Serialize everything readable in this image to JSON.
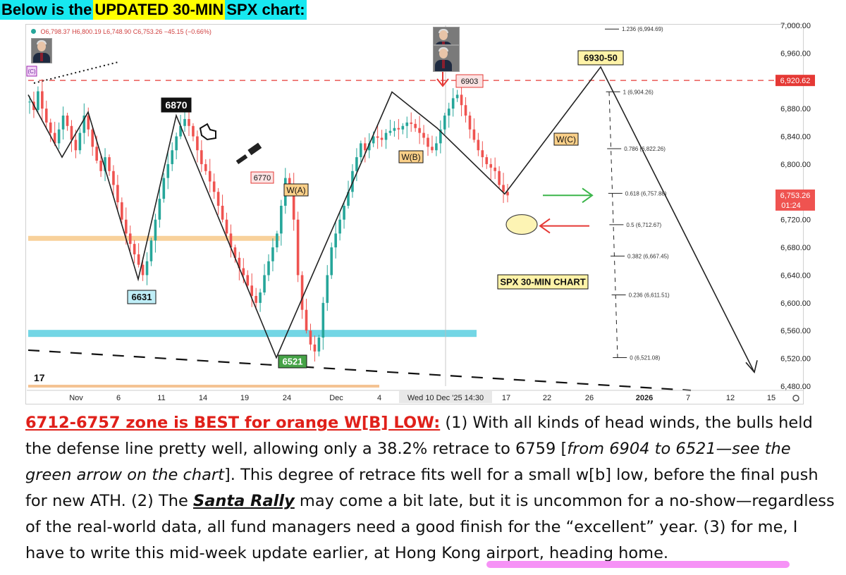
{
  "heading": {
    "part1": "Below is the ",
    "part2": "UPDATED 30-MIN",
    "part3": " SPX chart:",
    "colors": {
      "part1_bg": "#17e8f0",
      "part2_bg": "#ffff00",
      "part3_bg": "#17e8f0"
    }
  },
  "ohlc": {
    "open": "O6,798.37",
    "high": "H6,800.19",
    "low": "L6,748.90",
    "close": "C6,753.26",
    "change": "−45.15 (−0.66%)"
  },
  "chart_data": {
    "type": "candlestick",
    "symbol": "SPX",
    "timeframe": "30-min",
    "ylim": [
      6480,
      7000
    ],
    "y_ticks": [
      "7,000.00",
      "6,960.00",
      "6,920.62",
      "6,880.00",
      "6,840.00",
      "6,800.00",
      "6,760.00",
      "6,720.00",
      "6,680.00",
      "6,640.00",
      "6,600.00",
      "6,560.00",
      "6,520.00",
      "6,480.00"
    ],
    "y_tick_values": [
      7000,
      6960,
      6920.62,
      6880,
      6840,
      6800,
      6760,
      6720,
      6680,
      6640,
      6600,
      6560,
      6520,
      6480
    ],
    "x_ticks": [
      "Nov",
      "6",
      "11",
      "14",
      "19",
      "24",
      "Dec",
      "4",
      "Wed 10 Dec '25   14:30",
      "17",
      "22",
      "26",
      "2026",
      "7",
      "12",
      "15"
    ],
    "current_price": {
      "label": "6,753.26",
      "countdown": "01:24",
      "value": 6753.26
    },
    "resistance_line": {
      "value": 6920.62,
      "label": "6,920.62",
      "style": "dashed",
      "color": "#e53935"
    },
    "fibonacci": [
      {
        "ratio": "1.236",
        "label": "1.236 (6,994.69)",
        "value": 6994.69
      },
      {
        "ratio": "1",
        "label": "1 (6,904.26)",
        "value": 6904.26
      },
      {
        "ratio": "0.786",
        "label": "0.786 (6,822.26)",
        "value": 6822.26
      },
      {
        "ratio": "0.618",
        "label": "0.618 (6,757.88)",
        "value": 6757.88
      },
      {
        "ratio": "0.5",
        "label": "0.5 (6,712.67)",
        "value": 6712.67
      },
      {
        "ratio": "0.382",
        "label": "0.382 (6,667.45)",
        "value": 6667.45
      },
      {
        "ratio": "0.236",
        "label": "0.236 (6,611.51)",
        "value": 6611.51
      },
      {
        "ratio": "0",
        "label": "0 (6,521.08)",
        "value": 6521.08
      }
    ],
    "annotations": [
      {
        "text": "6870",
        "style": "dark"
      },
      {
        "text": "6631",
        "style": "cyan"
      },
      {
        "text": "6770",
        "style": "red-outline"
      },
      {
        "text": "W(A)",
        "style": "orange"
      },
      {
        "text": "6521",
        "style": "green"
      },
      {
        "text": "W(B)",
        "style": "orange"
      },
      {
        "text": "6903",
        "style": "red-outline"
      },
      {
        "text": "6930-50",
        "style": "yellow"
      },
      {
        "text": "W(C)",
        "style": "orange"
      },
      {
        "text": "SPX 30-MIN CHART",
        "style": "yellow"
      },
      {
        "text": "(C)",
        "style": "purple"
      }
    ],
    "wave_path": [
      {
        "x": 0,
        "y": 6900
      },
      {
        "x": 1,
        "y": 6810
      },
      {
        "x": 2,
        "y": 6875
      },
      {
        "x": 3,
        "y": 6634
      },
      {
        "x": 4,
        "y": 6870
      },
      {
        "x": 5,
        "y": 6521
      },
      {
        "x": 6,
        "y": 6904
      },
      {
        "x": 7,
        "y": 6852
      },
      {
        "x": 8,
        "y": 6757
      },
      {
        "x": 9,
        "y": 6940
      },
      {
        "x": 10,
        "y": 6500
      }
    ],
    "candles": [
      6890,
      6878,
      6905,
      6880,
      6860,
      6845,
      6830,
      6850,
      6870,
      6855,
      6835,
      6820,
      6845,
      6870,
      6850,
      6825,
      6805,
      6790,
      6810,
      6790,
      6770,
      6745,
      6720,
      6700,
      6685,
      6670,
      6655,
      6640,
      6660,
      6690,
      6720,
      6750,
      6780,
      6800,
      6820,
      6840,
      6855,
      6865,
      6855,
      6840,
      6820,
      6800,
      6790,
      6775,
      6760,
      6740,
      6720,
      6700,
      6680,
      6665,
      6650,
      6640,
      6625,
      6610,
      6600,
      6615,
      6640,
      6660,
      6680,
      6700,
      6740,
      6780,
      6770,
      6720,
      6640,
      6590,
      6560,
      6540,
      6530,
      6550,
      6600,
      6640,
      6680,
      6700,
      6720,
      6740,
      6760,
      6790,
      6810,
      6830,
      6820,
      6830,
      6840,
      6838,
      6835,
      6845,
      6848,
      6852,
      6850,
      6855,
      6860,
      6858,
      6852,
      6845,
      6838,
      6825,
      6820,
      6830,
      6850,
      6870,
      6880,
      6895,
      6900,
      6885,
      6870,
      6850,
      6835,
      6820,
      6810,
      6800,
      6795,
      6790,
      6770,
      6760,
      6755
    ],
    "marker_circle": {
      "label": "",
      "value": 6712
    },
    "arrows": [
      {
        "color": "green",
        "direction": "right",
        "value": 6757
      },
      {
        "color": "red",
        "direction": "left",
        "value": 6712
      }
    ],
    "support_bands": [
      {
        "color": "#5bcfe0",
        "value": 6556
      },
      {
        "color": "#f7c98a",
        "value": 6693
      },
      {
        "color": "#f2b880",
        "value": 6480
      }
    ],
    "trendline": {
      "style": "dashed",
      "color": "#111",
      "from_value": 6540,
      "to_value": 6478
    }
  },
  "caption": {
    "lead": "6712-6757 zone is BEST for orange W[B] LOW:",
    "text_a": " (1) With all kinds of head winds, the bulls held the defense line pretty well, allowing only a 38.2% retrace to 6759 [",
    "text_b": "from 6904 to 6521—see the green arrow on the chart",
    "text_c": "]. This degree of retrace fits well for a small w[b] low, before the final push for new ATH. (2) The ",
    "santa": "Santa Rally",
    "text_d": " may come a bit late, but it is uncommon for a no-show—regardless of the real-world data, all fund managers need a good finish for the “excellent” year. (3) for me, I have to write this mid-week update earlier, at Hong Kong airport, heading home."
  }
}
